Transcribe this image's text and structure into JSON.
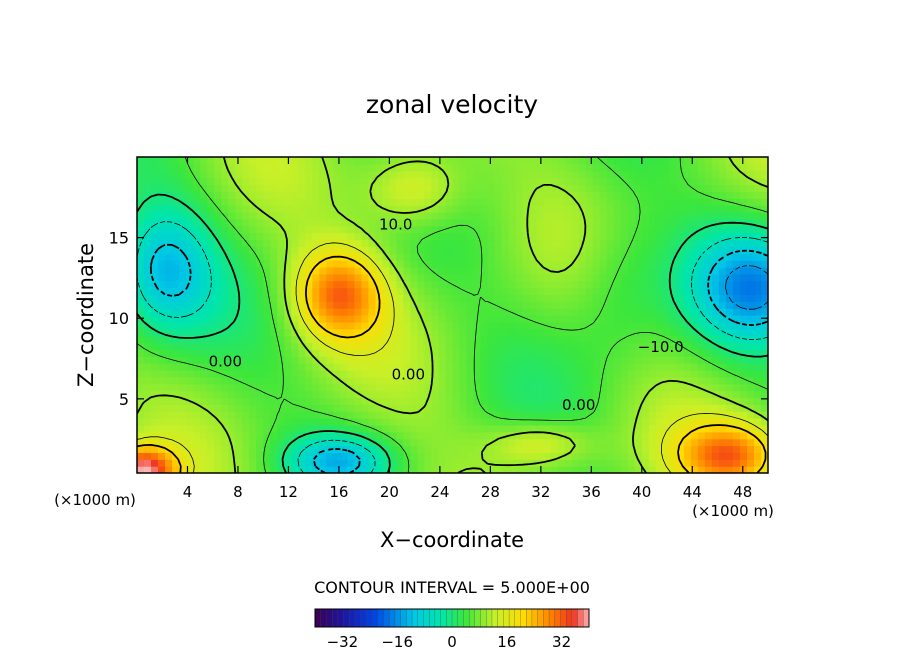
{
  "chart_data": {
    "type": "heatmap",
    "title": "zonal velocity",
    "xlabel": "X−coordinate",
    "ylabel": "Z−coordinate",
    "x_unit_left": "(×1000 m)",
    "x_unit_right": "(×1000 m)",
    "xlim": [
      0,
      50
    ],
    "ylim": [
      0.4,
      20
    ],
    "x_ticks": [
      4,
      8,
      12,
      16,
      20,
      24,
      28,
      32,
      36,
      40,
      44,
      48
    ],
    "y_ticks": [
      5,
      10,
      15
    ],
    "contour_interval_text": "CONTOUR INTERVAL = 5.000E+00",
    "contour_labels": [
      {
        "text": "10.0",
        "x": 20.5,
        "z": 15.5
      },
      {
        "text": "0.00",
        "x": 7.0,
        "z": 7.0
      },
      {
        "text": "0.00",
        "x": 21.5,
        "z": 6.2
      },
      {
        "text": "−10.0",
        "x": 41.5,
        "z": 7.9
      },
      {
        "text": "0.00",
        "x": 35.0,
        "z": 4.3
      }
    ],
    "colorbar": {
      "min": -40,
      "max": 40,
      "ticks": [
        "−32",
        "−16",
        "0",
        "16",
        "32"
      ],
      "tick_values": [
        -32,
        -16,
        0,
        16,
        32
      ]
    },
    "features": [
      {
        "x": 16,
        "z": 11.5,
        "value": 22,
        "sx": 3.5,
        "sz": 2.8
      },
      {
        "x": 2,
        "z": 13,
        "value": -18,
        "sx": 4,
        "sz": 4
      },
      {
        "x": 49,
        "z": 12,
        "value": -20,
        "sx": 5,
        "sz": 3.5
      },
      {
        "x": 0.5,
        "z": 0.6,
        "value": 30,
        "sx": 2.5,
        "sz": 1.4
      },
      {
        "x": 16,
        "z": 1.2,
        "value": -16,
        "sx": 4,
        "sz": 1.6
      },
      {
        "x": 47,
        "z": 1.5,
        "value": 22,
        "sx": 4,
        "sz": 2.0
      },
      {
        "x": 32,
        "z": 2.2,
        "value": 10,
        "sx": 4,
        "sz": 1.4
      },
      {
        "x": 22,
        "z": 18,
        "value": 12,
        "sx": 4,
        "sz": 2.5
      },
      {
        "x": 38,
        "z": 12,
        "value": -6,
        "sx": 4,
        "sz": 5
      }
    ]
  }
}
